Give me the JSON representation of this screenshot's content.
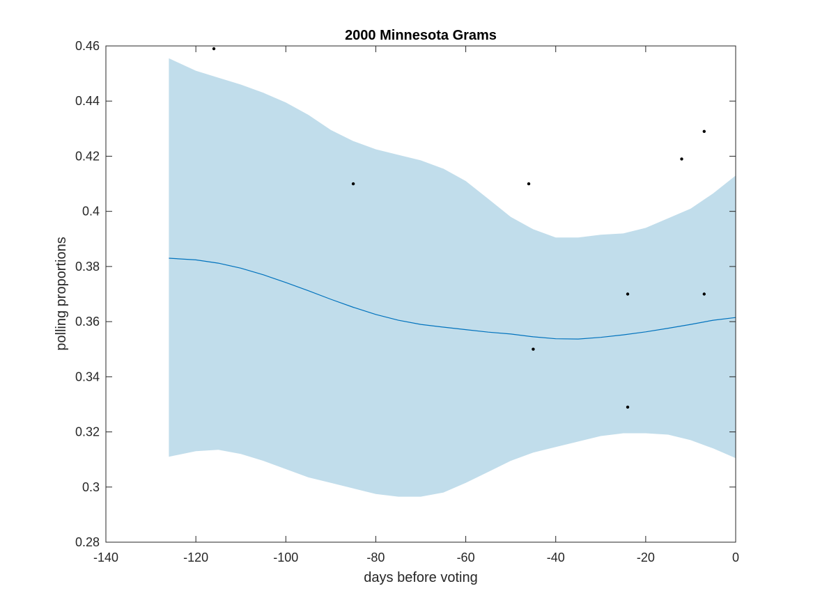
{
  "chart_data": {
    "type": "line",
    "title": "2000 Minnesota Grams",
    "xlabel": "days before voting",
    "ylabel": "polling proportions",
    "xlim": [
      -140,
      0
    ],
    "ylim": [
      0.28,
      0.46
    ],
    "xticks": [
      -140,
      -120,
      -100,
      -80,
      -60,
      -40,
      -20,
      0
    ],
    "yticks": [
      0.28,
      0.3,
      0.32,
      0.34,
      0.36,
      0.38,
      0.4,
      0.42,
      0.44,
      0.46
    ],
    "xtick_labels": [
      "-140",
      "-120",
      "-100",
      "-80",
      "-60",
      "-40",
      "-20",
      "0"
    ],
    "ytick_labels": [
      "0.28",
      "0.3",
      "0.32",
      "0.34",
      "0.36",
      "0.38",
      "0.4",
      "0.42",
      "0.44",
      "0.46"
    ],
    "grid": false,
    "colors": {
      "mean_line": "#0072bd",
      "band": "#c1ddeb",
      "points": "#000000",
      "axes": "#262626"
    },
    "series": [
      {
        "kind": "mean",
        "x": [
          -126,
          -120,
          -115,
          -110,
          -105,
          -100,
          -95,
          -90,
          -85,
          -80,
          -75,
          -70,
          -65,
          -60,
          -55,
          -50,
          -45,
          -40,
          -35,
          -30,
          -25,
          -20,
          -15,
          -10,
          -5,
          0
        ],
        "values": [
          0.383,
          0.3824,
          0.3812,
          0.3794,
          0.377,
          0.3742,
          0.3712,
          0.3681,
          0.3652,
          0.3626,
          0.3605,
          0.359,
          0.358,
          0.3571,
          0.3562,
          0.3555,
          0.3545,
          0.3538,
          0.3537,
          0.3543,
          0.3552,
          0.3563,
          0.3576,
          0.359,
          0.3605,
          0.3615
        ]
      },
      {
        "kind": "band-upper",
        "x": [
          -126,
          -120,
          -115,
          -110,
          -105,
          -100,
          -95,
          -90,
          -85,
          -80,
          -75,
          -70,
          -65,
          -60,
          -55,
          -50,
          -45,
          -40,
          -35,
          -30,
          -25,
          -20,
          -15,
          -10,
          -5,
          0
        ],
        "values": [
          0.4555,
          0.451,
          0.4485,
          0.446,
          0.443,
          0.4395,
          0.435,
          0.4295,
          0.4255,
          0.4225,
          0.4205,
          0.4185,
          0.4155,
          0.411,
          0.4045,
          0.398,
          0.3935,
          0.3905,
          0.3905,
          0.3915,
          0.392,
          0.394,
          0.3975,
          0.401,
          0.4065,
          0.413
        ]
      },
      {
        "kind": "band-lower",
        "x": [
          -126,
          -120,
          -115,
          -110,
          -105,
          -100,
          -95,
          -90,
          -85,
          -80,
          -75,
          -70,
          -65,
          -60,
          -55,
          -50,
          -45,
          -40,
          -35,
          -30,
          -25,
          -20,
          -15,
          -10,
          -5,
          0
        ],
        "values": [
          0.311,
          0.313,
          0.3135,
          0.312,
          0.3095,
          0.3065,
          0.3035,
          0.3015,
          0.2995,
          0.2975,
          0.2965,
          0.2965,
          0.298,
          0.3015,
          0.3055,
          0.3095,
          0.3125,
          0.3145,
          0.3165,
          0.3185,
          0.3195,
          0.3195,
          0.319,
          0.317,
          0.314,
          0.3105
        ]
      },
      {
        "kind": "points",
        "x": [
          -116,
          -85,
          -46,
          -45,
          -24,
          -24,
          -12,
          -7,
          -7
        ],
        "values": [
          0.459,
          0.41,
          0.41,
          0.35,
          0.37,
          0.329,
          0.419,
          0.429,
          0.37
        ]
      }
    ]
  }
}
